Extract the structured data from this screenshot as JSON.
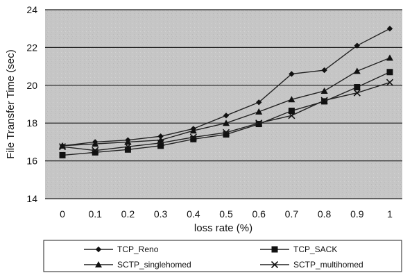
{
  "chart_data": {
    "type": "line",
    "title": "",
    "xlabel": "loss rate (%)",
    "ylabel": "File Transfer Time (sec)",
    "x": [
      0,
      0.1,
      0.2,
      0.3,
      0.4,
      0.5,
      0.6,
      0.7,
      0.8,
      0.9,
      1
    ],
    "xtick_labels": [
      "0",
      "0.1",
      "0.2",
      "0.3",
      "0.4",
      "0.5",
      "0.6",
      "0.7",
      "0.8",
      "0.9",
      "1"
    ],
    "ylim": [
      14,
      24
    ],
    "yticks": [
      14,
      16,
      18,
      20,
      22,
      24
    ],
    "grid": true,
    "legend_position": "bottom",
    "series": [
      {
        "name": "TCP_Reno",
        "marker": "diamond",
        "values": [
          16.8,
          17.0,
          17.1,
          17.3,
          17.7,
          18.4,
          19.1,
          20.6,
          20.8,
          22.1,
          23.0
        ]
      },
      {
        "name": "TCP_SACK",
        "marker": "square",
        "values": [
          16.3,
          16.45,
          16.6,
          16.8,
          17.15,
          17.4,
          17.95,
          18.65,
          19.15,
          19.9,
          20.7
        ]
      },
      {
        "name": "SCTP_singlehomed",
        "marker": "triangle",
        "values": [
          16.8,
          16.9,
          17.0,
          17.1,
          17.6,
          18.0,
          18.6,
          19.25,
          19.7,
          20.75,
          21.45
        ]
      },
      {
        "name": "SCTP_multihomed",
        "marker": "x",
        "values": [
          16.75,
          16.55,
          16.75,
          16.95,
          17.25,
          17.5,
          18.0,
          18.4,
          19.2,
          19.6,
          20.15
        ]
      }
    ]
  }
}
